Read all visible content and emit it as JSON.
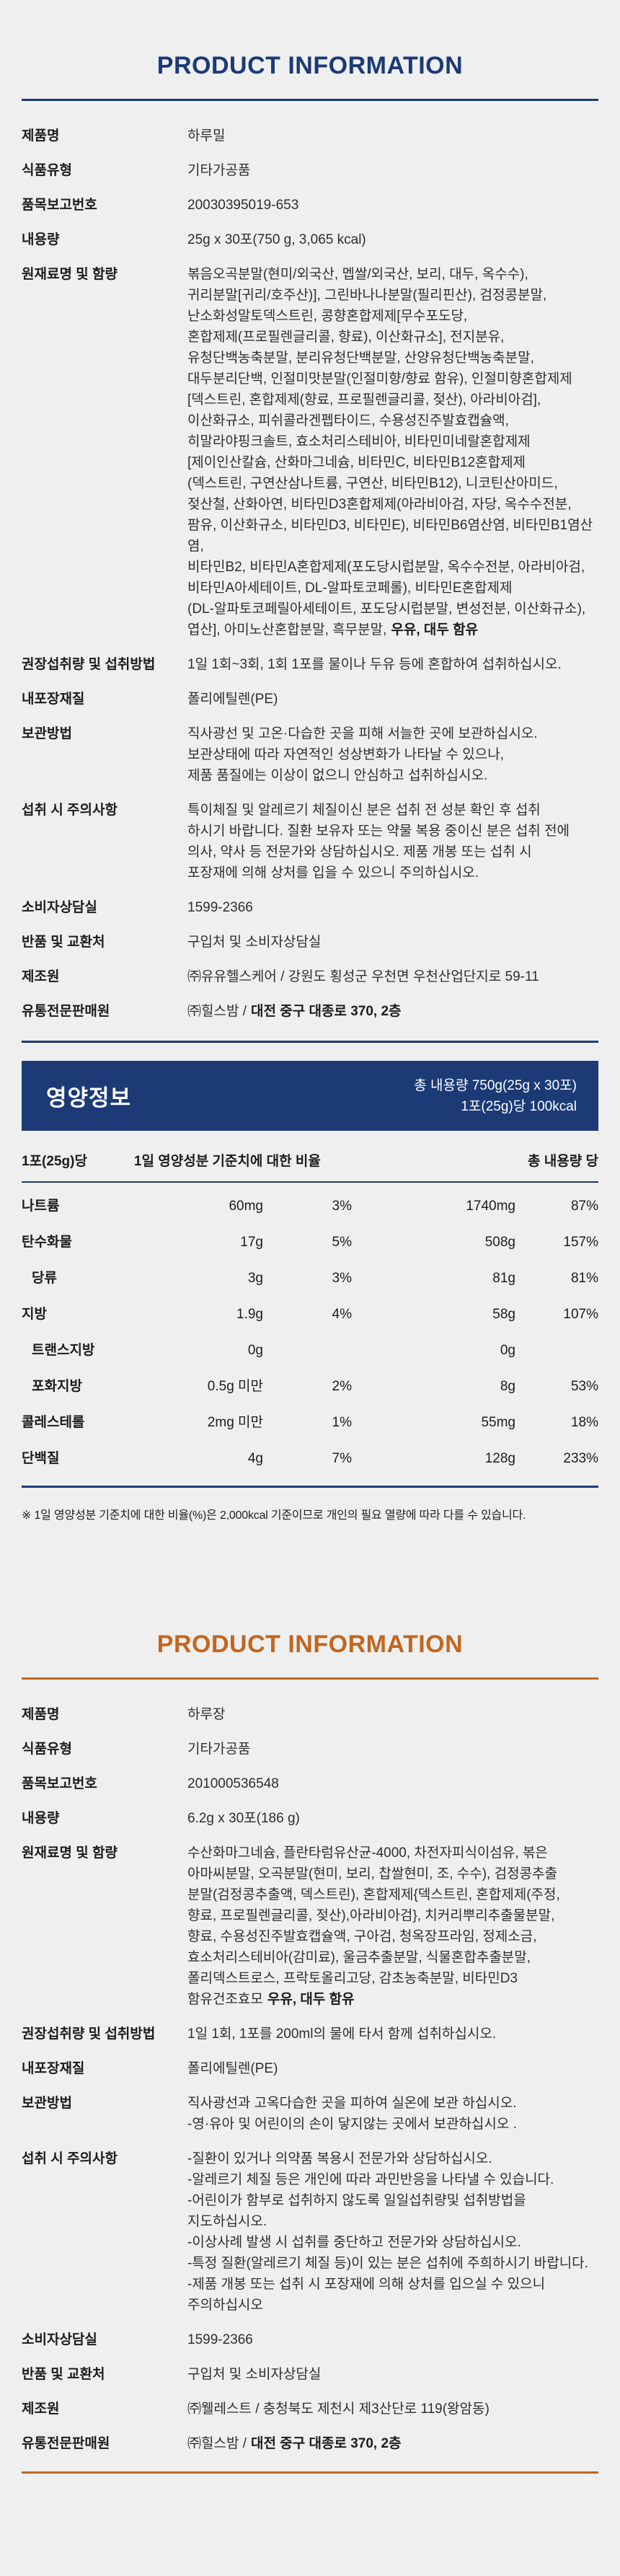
{
  "colors": {
    "navy": "#1b3a76",
    "orange": "#c2661e",
    "background": "#efeff0"
  },
  "section1": {
    "title": "PRODUCT INFORMATION",
    "rows": [
      {
        "label": "제품명",
        "value": "하루밀"
      },
      {
        "label": "식품유형",
        "value": "기타가공품"
      },
      {
        "label": "품목보고번호",
        "value": "20030395019-653"
      },
      {
        "label": "내용량",
        "value": "25g x 30포(750 g, 3,065 kcal)"
      },
      {
        "label": "원재료명 및 함량",
        "value_lines": [
          "볶음오곡분말(현미/외국산, 멥쌀/외국산, 보리, 대두, 옥수수),",
          "귀리분말[귀리/호주산)], 그린바나나분말(필리핀산), 검정콩분말,",
          "난소화성말토덱스트린, 콩향혼합제제[무수포도당,",
          "혼합제제(프로필렌글리콜, 향료), 이산화규소], 전지분유,",
          "유청단백농축분말, 분리유청단백분말, 산양유청단백농축분말,",
          "대두분리단백, 인절미맛분말(인절미향/향료 함유), 인절미향혼합제제",
          "[덱스트린, 혼합제제(향료, 프로필렌글리콜, 젖산), 아라비아검],",
          "이산화규소, 피쉬콜라겐펩타이드, 수용성진주발효캡슐액,",
          "히말라야핑크솔트, 효소처리스테비아, 비타민미네랄혼합제제",
          "[제이인산칼슘, 산화마그네슘, 비타민C, 비타민B12혼합제제",
          "(덱스트린, 구연산삼나트륨, 구연산, 비타민B12), 니코틴산아미드,",
          "젖산철, 산화아연, 비타민D3혼합제제(아라비아검, 자당, 옥수수전분,",
          "팜유, 이산화규소, 비타민D3, 비타민E), 비타민B6염산염, 비타민B1염산염,",
          "비타민B2, 비타민A혼합제제(포도당시럽분말, 옥수수전분, 아라비아검,",
          "비타민A아세테이트, DL-알파토코페롤), 비타민E혼합제제",
          "(DL-알파토코페릴아세테이트, 포도당시럽분말, 변성전분, 이산화규소),",
          "엽산], 아미노산혼합분말, 흑무분말,"
        ],
        "value_bold": "우유, 대두 함유"
      },
      {
        "label": "권장섭취량 및 섭취방법",
        "value": "1일 1회~3회, 1회 1포를 물이나 두유 등에 혼합하여 섭취하십시오."
      },
      {
        "label": "내포장재질",
        "value": "폴리에틸렌(PE)"
      },
      {
        "label": "보관방법",
        "value_lines": [
          "직사광선 및 고온·다습한 곳을 피해 서늘한 곳에 보관하십시오.",
          "보관상태에 따라 자연적인 성상변화가 나타날 수 있으나,",
          "제품 품질에는 이상이 없으니 안심하고 섭취하십시오."
        ]
      },
      {
        "label": "섭취 시 주의사항",
        "value_lines": [
          "특이체질 및 알레르기 체질이신 분은 섭취 전 성분 확인 후 섭취",
          "하시기 바랍니다. 질환 보유자 또는 약물 복용 중이신 분은 섭취 전에",
          "의사, 약사 등 전문가와 상담하십시오. 제품 개봉 또는 섭취 시",
          "포장재에 의해 상처를 입을 수 있으니 주의하십시오."
        ]
      },
      {
        "label": "소비자상담실",
        "value": "1599-2366"
      },
      {
        "label": "반품 및 교환처",
        "value": "구입처 및 소비자상담실"
      },
      {
        "label": "제조원",
        "value": "㈜유유헬스케어 / 강원도 횡성군 우천면 우천산업단지로 59-11"
      },
      {
        "label": "유통전문판매원",
        "value": "㈜힐스밤 /",
        "value_bold": "대전 중구 대종로 370, 2층"
      }
    ]
  },
  "nutrition": {
    "title": "영양정보",
    "total_line1": "총 내용량 750g(25g x 30포)",
    "total_line2": "1포(25g)당 100kcal",
    "col_serving": "1포(25g)당",
    "col_daily": "1일 영양성분 기준치에 대한 비율",
    "col_total": "총 내용량 당",
    "rows": [
      {
        "name": "나트륨",
        "indent": false,
        "amount_serving": "60mg",
        "percent_serving": "3%",
        "amount_total": "1740mg",
        "percent_total": "87%"
      },
      {
        "name": "탄수화물",
        "indent": false,
        "amount_serving": "17g",
        "percent_serving": "5%",
        "amount_total": "508g",
        "percent_total": "157%"
      },
      {
        "name": "당류",
        "indent": true,
        "amount_serving": "3g",
        "percent_serving": "3%",
        "amount_total": "81g",
        "percent_total": "81%"
      },
      {
        "name": "지방",
        "indent": false,
        "amount_serving": "1.9g",
        "percent_serving": "4%",
        "amount_total": "58g",
        "percent_total": "107%"
      },
      {
        "name": "트랜스지방",
        "indent": true,
        "amount_serving": "0g",
        "percent_serving": "",
        "amount_total": "0g",
        "percent_total": ""
      },
      {
        "name": "포화지방",
        "indent": true,
        "amount_serving": "0.5g 미만",
        "percent_serving": "2%",
        "amount_total": "8g",
        "percent_total": "53%"
      },
      {
        "name": "콜레스테롤",
        "indent": false,
        "amount_serving": "2mg 미만",
        "percent_serving": "1%",
        "amount_total": "55mg",
        "percent_total": "18%"
      },
      {
        "name": "단백질",
        "indent": false,
        "amount_serving": "4g",
        "percent_serving": "7%",
        "amount_total": "128g",
        "percent_total": "233%"
      }
    ],
    "footnote": "※ 1일 영양성분 기준치에 대한 비율(%)은 2,000kcal 기준이므로 개인의 필요 열량에 따라 다를 수 있습니다."
  },
  "section2": {
    "title": "PRODUCT INFORMATION",
    "rows": [
      {
        "label": "제품명",
        "value": "하루장"
      },
      {
        "label": "식품유형",
        "value": "기타가공품"
      },
      {
        "label": "품목보고번호",
        "value": "201000536548"
      },
      {
        "label": "내용량",
        "value": "6.2g x 30포(186 g)"
      },
      {
        "label": "원재료명 및 함량",
        "value_lines": [
          "수산화마그네슘, 플란타럼유산균-4000, 차전자피식이섬유, 볶은",
          "아마씨분말, 오곡분말(현미, 보리, 찹쌀현미, 조, 수수), 검정콩추출",
          "분말(검정콩추출액, 덱스트린), 혼합제제{덱스트린, 혼합제제(주정,",
          "향료, 프로필렌글리콜, 젖산),아라비아검}, 치커리뿌리추출물분말,",
          "향료, 수용성진주발효캡슐액, 구아검, 청옥장프라임, 정제소금,",
          "효소처리스테비아(감미료), 울금추출분말, 식물혼합추출분말,",
          "폴리덱스트로스, 프락토올리고당, 감초농축분말, 비타민D3",
          "함유건조효모"
        ],
        "value_bold": "우유, 대두 함유"
      },
      {
        "label": "권장섭취량 및 섭취방법",
        "value": "1일 1회, 1포를 200ml의 물에 타서 함께 섭취하십시오."
      },
      {
        "label": "내포장재질",
        "value": "폴리에틸렌(PE)"
      },
      {
        "label": "보관방법",
        "value_lines": [
          "직사광선과 고옥다습한 곳을 피하여 실온에 보관 하십시오.",
          "-영·유아 및 어린이의 손이 닿지않는 곳에서 보관하십시오 ."
        ]
      },
      {
        "label": "섭취 시 주의사항",
        "value_lines": [
          "-질환이 있거나 의약품 복용시 전문가와 상담하십시오.",
          "-알레르기 체질 등은 개인에 따라 과민반응을 나타낼 수 있습니다.",
          "-어린이가 함부로 섭취하지 않도록 일일섭취량및 섭취방법을",
          "지도하십시오.",
          "-이상사례 발생 시 섭취를 중단하고 전문가와 상담하십시오.",
          "-특정 질환(알레르기 체질 등)이 있는 분은 섭취에 주희하시기 바랍니다.",
          "-제품 개봉 또는 섭취 시 포장재에 의해 상처를 입으실 수 있으니",
          "주의하십시오"
        ]
      },
      {
        "label": "소비자상담실",
        "value": "1599-2366"
      },
      {
        "label": "반품 및 교환처",
        "value": "구입처 및 소비자상담실"
      },
      {
        "label": "제조원",
        "value": "㈜웰레스트 / 충청북도 제천시 제3산단로 119(왕암동)"
      },
      {
        "label": "유통전문판매원",
        "value": "㈜힐스밤 /",
        "value_bold": "대전 중구 대종로 370, 2층"
      }
    ]
  }
}
